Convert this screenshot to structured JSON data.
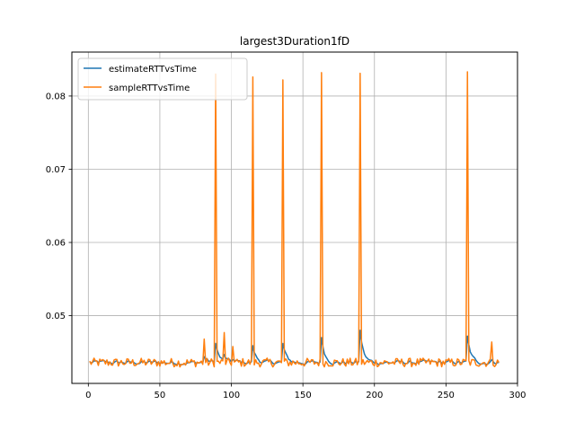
{
  "chart_data": {
    "type": "line",
    "title": "largest3Duration1fD",
    "xlabel": "",
    "ylabel": "",
    "xlim": [
      -11.5,
      300
    ],
    "ylim": [
      0.04075,
      0.086
    ],
    "xticks": [
      0,
      50,
      100,
      150,
      200,
      250,
      300
    ],
    "yticks": [
      0.05,
      0.06,
      0.07,
      0.08
    ],
    "ytick_labels": [
      "0.05",
      "0.06",
      "0.07",
      "0.08"
    ],
    "grid": true,
    "legend_position": "upper-left",
    "colors": {
      "estimate": "#1f77b4",
      "sample": "#ff7f0e",
      "grid": "#b0b0b0"
    },
    "base_level": 0.0436,
    "noise_amplitude": 0.0006,
    "n_points": 287,
    "spikes": [
      {
        "x": 81,
        "sample": 0.0468,
        "estimate": 0.0444
      },
      {
        "x": 89,
        "sample": 0.083,
        "estimate": 0.0462
      },
      {
        "x": 95,
        "sample": 0.0477,
        "estimate": 0.0447
      },
      {
        "x": 101,
        "sample": 0.0458,
        "estimate": 0.044
      },
      {
        "x": 115,
        "sample": 0.0826,
        "estimate": 0.0459
      },
      {
        "x": 136,
        "sample": 0.0822,
        "estimate": 0.0462
      },
      {
        "x": 163,
        "sample": 0.0832,
        "estimate": 0.047
      },
      {
        "x": 190,
        "sample": 0.0831,
        "estimate": 0.048
      },
      {
        "x": 265,
        "sample": 0.0833,
        "estimate": 0.0472
      },
      {
        "x": 282,
        "sample": 0.0464,
        "estimate": 0.044
      }
    ],
    "series": [
      {
        "name": "estimateRTTvsTime",
        "key": "estimate"
      },
      {
        "name": "sampleRTTvsTime",
        "key": "sample"
      }
    ]
  }
}
